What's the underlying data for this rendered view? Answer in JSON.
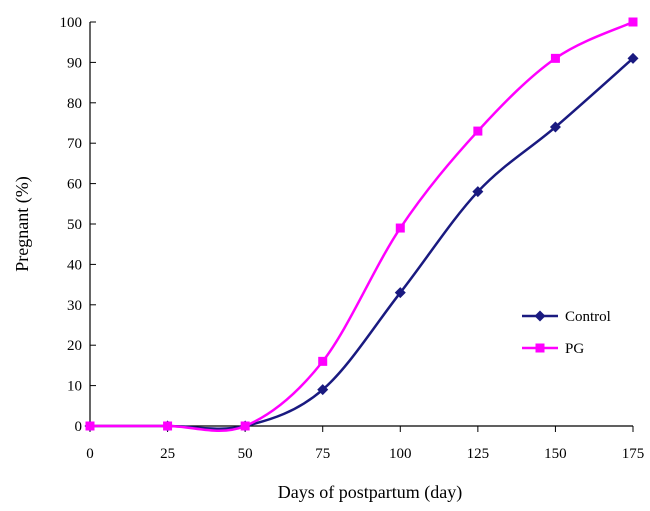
{
  "chart_data": {
    "type": "line",
    "title": "",
    "xlabel": "Days of postpartum (day)",
    "ylabel": "Pregnant (%)",
    "x": [
      0,
      25,
      50,
      75,
      100,
      125,
      150,
      175
    ],
    "xlim": [
      0,
      175
    ],
    "ylim": [
      0,
      100
    ],
    "xticks": [
      "0",
      "25",
      "50",
      "75",
      "100",
      "125",
      "150",
      "175"
    ],
    "yticks": [
      "0",
      "10",
      "20",
      "30",
      "40",
      "50",
      "60",
      "70",
      "80",
      "90",
      "100"
    ],
    "grid": false,
    "legend_position": "right",
    "series": [
      {
        "name": "Control",
        "color": "#1a1a80",
        "marker": "diamond",
        "values": [
          0,
          0,
          0,
          9,
          33,
          58,
          74,
          91
        ]
      },
      {
        "name": "PG",
        "color": "#ff00ff",
        "marker": "square",
        "values": [
          0,
          0,
          0,
          16,
          49,
          73,
          91,
          100
        ]
      }
    ]
  }
}
